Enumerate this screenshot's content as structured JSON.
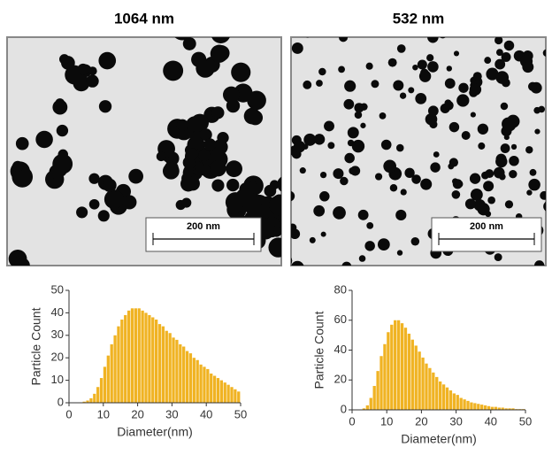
{
  "chart_data": [
    {
      "type": "histogram",
      "title": "1064 nm",
      "scale_bar_label": "200 nm",
      "xlabel": "Diameter(nm)",
      "ylabel": "Particle Count",
      "color": "#f0b323",
      "bins": [
        0,
        1,
        2,
        3,
        4,
        5,
        6,
        7,
        8,
        9,
        10,
        11,
        12,
        13,
        14,
        15,
        16,
        17,
        18,
        19,
        20,
        21,
        22,
        23,
        24,
        25,
        26,
        27,
        28,
        29,
        30,
        31,
        32,
        33,
        34,
        35,
        36,
        37,
        38,
        39,
        40,
        41,
        42,
        43,
        44,
        45,
        46,
        47,
        48,
        49,
        50
      ],
      "values": [
        0,
        0,
        0,
        0,
        0.5,
        1,
        2,
        4,
        7,
        11,
        16,
        21,
        26,
        30,
        34,
        37,
        39,
        41,
        42,
        42,
        42,
        41,
        40,
        39,
        38,
        37,
        35,
        34,
        32,
        31,
        29,
        28,
        26,
        25,
        23,
        22,
        20,
        19,
        17,
        16,
        15,
        13,
        12,
        11,
        10,
        9,
        8,
        7,
        6,
        5
      ],
      "xlim": [
        0,
        50
      ],
      "xticks": [
        0,
        10,
        20,
        30,
        40,
        50
      ],
      "ylim": [
        0,
        50
      ],
      "yticks": [
        0,
        10,
        20,
        30,
        40,
        50
      ]
    },
    {
      "type": "histogram",
      "title": "532 nm",
      "scale_bar_label": "200 nm",
      "xlabel": "Diameter(nm)",
      "ylabel": "Particle Count",
      "color": "#f0b323",
      "bins": [
        0,
        1,
        2,
        3,
        4,
        5,
        6,
        7,
        8,
        9,
        10,
        11,
        12,
        13,
        14,
        15,
        16,
        17,
        18,
        19,
        20,
        21,
        22,
        23,
        24,
        25,
        26,
        27,
        28,
        29,
        30,
        31,
        32,
        33,
        34,
        35,
        36,
        37,
        38,
        39,
        40,
        41,
        42,
        43,
        44,
        45,
        46,
        47,
        48,
        49,
        50
      ],
      "values": [
        0,
        0,
        0,
        1,
        3,
        8,
        16,
        26,
        36,
        44,
        52,
        57,
        60,
        60,
        58,
        55,
        51,
        47,
        43,
        39,
        35,
        31,
        28,
        25,
        22,
        19,
        17,
        15,
        13,
        11,
        10,
        8,
        7,
        6,
        5,
        4.5,
        4,
        3.5,
        3,
        2.5,
        2,
        2,
        1.5,
        1.5,
        1,
        1,
        1,
        0.5,
        0.5,
        0.5
      ],
      "xlim": [
        0,
        50
      ],
      "xticks": [
        0,
        10,
        20,
        30,
        40,
        50
      ],
      "ylim": [
        0,
        80
      ],
      "yticks": [
        0,
        20,
        40,
        60,
        80
      ]
    }
  ]
}
